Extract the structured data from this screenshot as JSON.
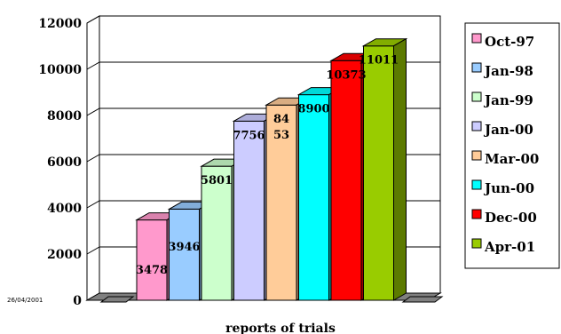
{
  "chart_data": {
    "type": "bar",
    "title": "",
    "xlabel": "reports of trials",
    "ylabel": "",
    "ylim": [
      0,
      12000
    ],
    "yticks": [
      0,
      2000,
      4000,
      6000,
      8000,
      10000,
      12000
    ],
    "categories": [
      "Oct-97",
      "Jan-98",
      "Jan-99",
      "Jan-00",
      "Mar-00",
      "Jun-00",
      "Dec-00",
      "Apr-01"
    ],
    "values": [
      3478,
      3946,
      5801,
      7756,
      8453,
      8900,
      10373,
      11011
    ],
    "data_labels": [
      "3478",
      "3946",
      "5801",
      "7756",
      "84\n53",
      "8900",
      "10373",
      "11011"
    ],
    "colors": [
      "#ff99cc",
      "#99ccff",
      "#ccffcc",
      "#ccccff",
      "#ffcc99",
      "#00ffff",
      "#ff0000",
      "#99cc00"
    ],
    "legend_position": "right",
    "grid": true,
    "three_d": true
  },
  "date_stamp": "26/04/2001"
}
